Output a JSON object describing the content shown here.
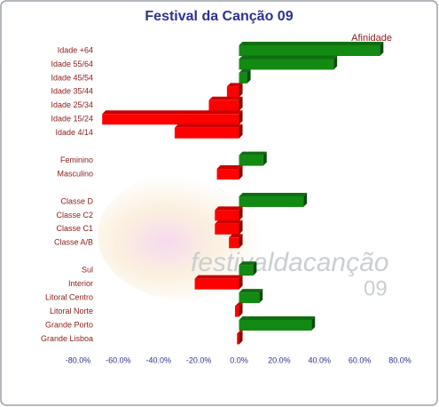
{
  "chart_data": {
    "type": "bar",
    "orientation": "horizontal",
    "title": "Festival da Canção 09",
    "watermark": [
      "festivaldacanção",
      "09"
    ],
    "categories": [
      "Idade +64",
      "Idade 55/64",
      "Idade 45/54",
      "Idade 35/44",
      "Idade 25/34",
      "Idade 15/24",
      "Idade 4/14",
      null,
      "Feminino",
      "Masculino",
      null,
      "Classe D",
      "Classe C2",
      "Classe C1",
      "Classe A/B",
      null,
      "Sul",
      "Interior",
      "Litoral Centro",
      "Litoral Norte",
      "Grande Porto",
      "Grande Lisboa"
    ],
    "series": [
      {
        "name": "Afinidade",
        "positive_color": "#138a13",
        "negative_color": "#ff0000",
        "values": [
          70,
          47,
          4,
          -6,
          -15,
          -68,
          -32,
          null,
          12,
          -11,
          null,
          32,
          -12,
          -12,
          -5,
          null,
          7,
          -22,
          10,
          -2,
          36,
          -1
        ]
      }
    ],
    "xlim": [
      -80,
      80
    ],
    "xticks": [
      {
        "value": -80,
        "label": "-80.0%"
      },
      {
        "value": -60,
        "label": "-60.0%"
      },
      {
        "value": -40,
        "label": "-40.0%"
      },
      {
        "value": -20,
        "label": "-20.0%"
      },
      {
        "value": 0,
        "label": "0.0%"
      },
      {
        "value": 20,
        "label": "20.0%"
      },
      {
        "value": 40,
        "label": "40.0%"
      },
      {
        "value": 60,
        "label": "60.0%"
      },
      {
        "value": 80,
        "label": "80.0%"
      }
    ],
    "grid": false,
    "legend": "top-right"
  }
}
